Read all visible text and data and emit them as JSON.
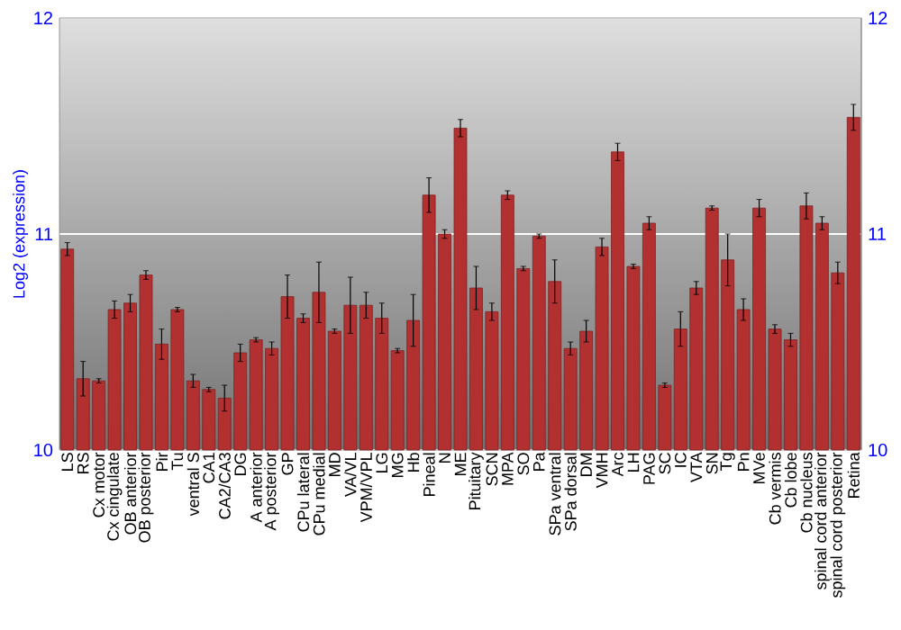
{
  "chart_data": {
    "type": "bar",
    "ylabel": "Log2 (expression)",
    "categories": [
      "LS",
      "RS",
      "Cx motor",
      "Cx cingulate",
      "OB anterior",
      "OB posterior",
      "Pir",
      "Tu",
      "ventral S",
      "CA1",
      "CA2/CA3",
      "DG",
      "A anterior",
      "A posterior",
      "GP",
      "CPu lateral",
      "CPu medial",
      "MD",
      "VA/VL",
      "VPM/VPL",
      "LG",
      "MG",
      "Hb",
      "Pineal",
      "N",
      "ME",
      "Pituitary",
      "SCN",
      "MPA",
      "SO",
      "Pa",
      "SPa ventral",
      "SPa dorsal",
      "DM",
      "VMH",
      "Arc",
      "LH",
      "PAG",
      "SC",
      "IC",
      "VTA",
      "SN",
      "Tg",
      "Pn",
      "MVe",
      "Cb vermis",
      "Cb lobe",
      "Cb nucleus",
      "spinal cord anterior",
      "spinal cord posterior",
      "Retina"
    ],
    "values": [
      10.93,
      10.33,
      10.32,
      10.65,
      10.68,
      10.81,
      10.49,
      10.65,
      10.32,
      10.28,
      10.24,
      10.45,
      10.51,
      10.47,
      10.71,
      10.61,
      10.73,
      10.55,
      10.67,
      10.67,
      10.61,
      10.46,
      10.6,
      11.18,
      11.0,
      11.49,
      10.75,
      10.64,
      11.18,
      10.84,
      10.99,
      10.78,
      10.47,
      10.55,
      10.94,
      11.38,
      10.85,
      11.05,
      10.3,
      10.56,
      10.75,
      11.12,
      10.88,
      10.65,
      11.12,
      10.56,
      10.51,
      11.13,
      11.05,
      10.82,
      11.54
    ],
    "errors": [
      0.03,
      0.08,
      0.01,
      0.04,
      0.04,
      0.02,
      0.07,
      0.01,
      0.03,
      0.01,
      0.06,
      0.04,
      0.01,
      0.03,
      0.1,
      0.02,
      0.14,
      0.01,
      0.13,
      0.06,
      0.07,
      0.01,
      0.12,
      0.08,
      0.02,
      0.04,
      0.1,
      0.04,
      0.02,
      0.01,
      0.01,
      0.1,
      0.03,
      0.05,
      0.04,
      0.04,
      0.01,
      0.03,
      0.01,
      0.08,
      0.03,
      0.01,
      0.12,
      0.05,
      0.04,
      0.02,
      0.03,
      0.06,
      0.03,
      0.05,
      0.06
    ],
    "color": "#b23030",
    "ylim": [
      10,
      12
    ],
    "yticks": [
      10,
      11,
      12
    ],
    "y2lim": [
      10,
      12
    ],
    "y2ticks": [
      10,
      11,
      12
    ],
    "grid": "y"
  }
}
